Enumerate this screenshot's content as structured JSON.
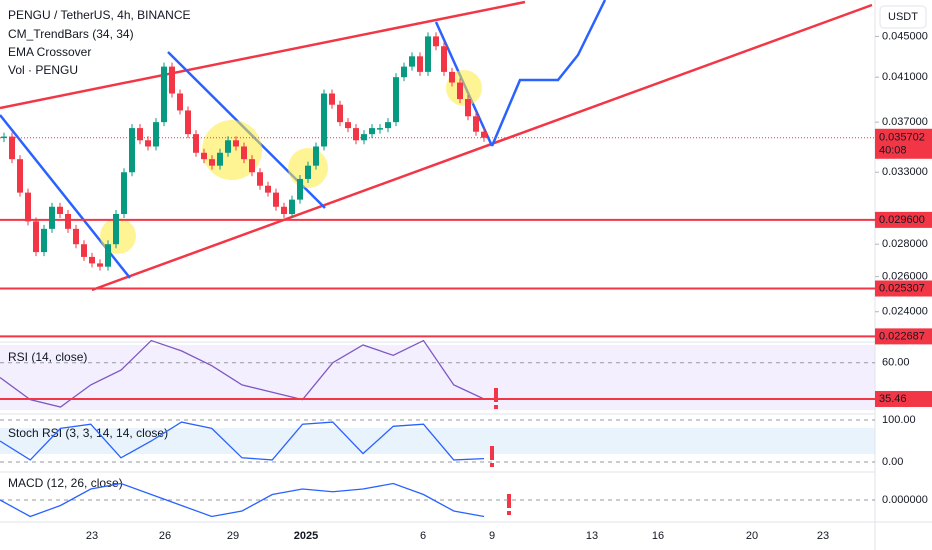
{
  "chart_data": {
    "type": "candlestick",
    "title": "PENGU / TetherUS, 4h, BINANCE",
    "indicators": [
      "CM_TrendBars (34, 34)",
      "EMA Crossover",
      "Vol · PENGU"
    ],
    "currency": "USDT",
    "log_scale": true,
    "ylim": [
      0.0225,
      0.0489
    ],
    "yticks": [
      {
        "value": 0.045,
        "label": "0.045000"
      },
      {
        "value": 0.041,
        "label": "0.041000"
      },
      {
        "value": 0.037,
        "label": "0.037000"
      },
      {
        "value": 0.033,
        "label": "0.033000"
      },
      {
        "value": 0.028,
        "label": "0.028000"
      },
      {
        "value": 0.026,
        "label": "0.026000"
      },
      {
        "value": 0.024,
        "label": "0.024000"
      }
    ],
    "last_price": {
      "value": 0.035702,
      "label": "0.035702",
      "countdown": "40:08"
    },
    "levels": [
      {
        "value": 0.0296,
        "label": "0.029600"
      },
      {
        "value": 0.025307,
        "label": "0.025307"
      },
      {
        "value": 0.022687,
        "label": "0.022687"
      }
    ],
    "closes": [
      0.0358,
      0.034,
      0.0315,
      0.0295,
      0.0275,
      0.029,
      0.0305,
      0.03,
      0.029,
      0.028,
      0.0272,
      0.0268,
      0.0266,
      0.028,
      0.03,
      0.033,
      0.0365,
      0.0355,
      0.035,
      0.037,
      0.042,
      0.0395,
      0.038,
      0.036,
      0.0345,
      0.034,
      0.0335,
      0.0345,
      0.0355,
      0.035,
      0.034,
      0.033,
      0.032,
      0.0315,
      0.0305,
      0.03,
      0.031,
      0.0325,
      0.0335,
      0.035,
      0.0395,
      0.0385,
      0.037,
      0.0365,
      0.0355,
      0.036,
      0.0365,
      0.0365,
      0.037,
      0.041,
      0.042,
      0.043,
      0.0415,
      0.045,
      0.044,
      0.0415,
      0.0405,
      0.039,
      0.0375,
      0.0362,
      0.0357
    ],
    "x_labels": [
      "23",
      "26",
      "29",
      "2025",
      "6",
      "9",
      "13",
      "16",
      "20",
      "23"
    ],
    "rsi": {
      "title": "RSI (14, close)",
      "ylim": [
        28,
        72
      ],
      "yticks": [
        {
          "value": 60,
          "label": "60.00"
        }
      ],
      "last": {
        "value": 35.46,
        "label": "35.46"
      },
      "values": [
        50,
        35,
        30,
        45,
        55,
        75,
        68,
        58,
        45,
        40,
        35,
        60,
        72,
        65,
        75,
        45,
        35.46
      ]
    },
    "stoch": {
      "title": "Stoch RSI (3, 3, 14, 14, close)",
      "ylim": [
        0,
        100
      ],
      "yticks": [
        {
          "value": 100,
          "label": "100.00"
        },
        {
          "value": 0,
          "label": "0.00"
        }
      ],
      "values": [
        50,
        5,
        80,
        90,
        10,
        50,
        95,
        80,
        10,
        5,
        90,
        95,
        20,
        85,
        90,
        5,
        8
      ]
    },
    "macd": {
      "title": "MACD (12, 26, close)",
      "ylim": [
        -0.004,
        0.004
      ],
      "yticks": [
        {
          "value": 0,
          "label": "0.000000"
        }
      ],
      "values": [
        0,
        -0.003,
        -0.001,
        0.002,
        0.003,
        0.001,
        -0.001,
        -0.003,
        -0.002,
        0.001,
        0.002,
        0.0015,
        0.002,
        0.003,
        0.001,
        -0.002,
        -0.003
      ]
    }
  }
}
